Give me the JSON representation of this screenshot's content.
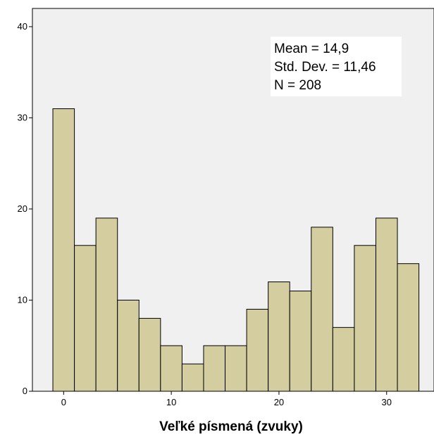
{
  "chart_data": {
    "type": "bar",
    "title": "",
    "xlabel": "Veľké písmená (zvuky)",
    "ylabel": "",
    "bins": [
      {
        "start": -1,
        "end": 1,
        "count": 31
      },
      {
        "start": 1,
        "end": 3,
        "count": 16
      },
      {
        "start": 3,
        "end": 5,
        "count": 19
      },
      {
        "start": 5,
        "end": 7,
        "count": 10
      },
      {
        "start": 7,
        "end": 9,
        "count": 8
      },
      {
        "start": 9,
        "end": 11,
        "count": 5
      },
      {
        "start": 11,
        "end": 13,
        "count": 3
      },
      {
        "start": 13,
        "end": 15,
        "count": 5
      },
      {
        "start": 15,
        "end": 17,
        "count": 5
      },
      {
        "start": 17,
        "end": 19,
        "count": 9
      },
      {
        "start": 19,
        "end": 21,
        "count": 12
      },
      {
        "start": 21,
        "end": 23,
        "count": 11
      },
      {
        "start": 23,
        "end": 25,
        "count": 18
      },
      {
        "start": 25,
        "end": 27,
        "count": 7
      },
      {
        "start": 27,
        "end": 29,
        "count": 16
      },
      {
        "start": 29,
        "end": 31,
        "count": 19
      },
      {
        "start": 31,
        "end": 33,
        "count": 14
      }
    ],
    "xticks": [
      0,
      10,
      20,
      30
    ],
    "yticks": [
      0,
      10,
      20,
      30,
      40
    ],
    "xlim": [
      -2.9,
      34.4
    ],
    "ylim": [
      0,
      42
    ],
    "grid": false,
    "stats": {
      "mean": "Mean = 14,9",
      "std_dev": "Std. Dev. = 11,46",
      "n": "N = 208"
    },
    "colors": {
      "bar_fill": "#d3cda0",
      "bar_stroke": "#000000",
      "plot_background": "#f0f0f0",
      "stats_background": "#ffffff"
    }
  }
}
